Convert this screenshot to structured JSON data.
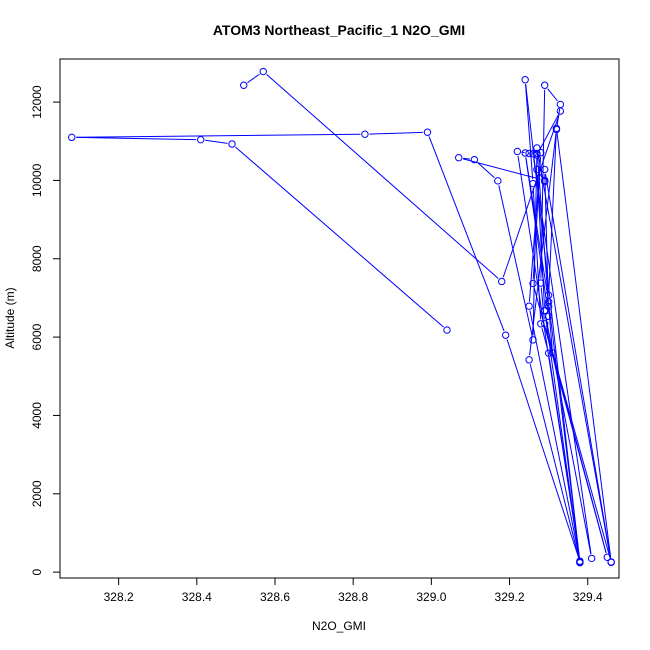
{
  "chart_data": {
    "type": "line",
    "title": "ATOM3 Northeast_Pacific_1 N2O_GMI",
    "xlabel": "N2O_GMI",
    "ylabel": "Altitude (m)",
    "xlim": [
      328.05,
      329.48
    ],
    "ylim": [
      -150,
      13100
    ],
    "x_ticks": [
      328.2,
      328.4,
      328.6,
      328.8,
      329.0,
      329.2,
      329.4
    ],
    "x_tick_labels": [
      "328.2",
      "328.4",
      "328.6",
      "328.8",
      "329.0",
      "329.2",
      "329.4"
    ],
    "y_ticks": [
      0,
      2000,
      4000,
      6000,
      8000,
      10000,
      12000
    ],
    "y_tick_labels": [
      "0",
      "2000",
      "4000",
      "6000",
      "8000",
      "10000",
      "12000"
    ],
    "color": "#0000ff",
    "marker": "open-circle",
    "series": [
      {
        "x": [
          329.04,
          328.49,
          328.41,
          328.08,
          328.83,
          328.99,
          329.19,
          329.38,
          329.3,
          329.28,
          329.26,
          329.24,
          329.38,
          329.29,
          329.3,
          329.32,
          329.46,
          329.29,
          329.28,
          329.29,
          329.33,
          329.32,
          329.25,
          329.38,
          329.3,
          329.24,
          329.3,
          329.29,
          329.46,
          329.27,
          329.3,
          329.31,
          329.45,
          329.26,
          329.28,
          329.25,
          329.38,
          329.22,
          329.25,
          329.26,
          329.41,
          329.29,
          329.27,
          329.29,
          329.29,
          329.07,
          329.11,
          329.17,
          329.26,
          329.27,
          329.27,
          329.33,
          329.18,
          328.57,
          328.52
        ],
        "y": [
          6180,
          10930,
          11040,
          11100,
          11180,
          11230,
          6050,
          270,
          5590,
          6340,
          9920,
          12570,
          240,
          6680,
          7070,
          11330,
          260,
          6340,
          7380,
          12430,
          11940,
          11300,
          5420,
          250,
          6900,
          10700,
          6530,
          10280,
          250,
          10830,
          6780,
          5600,
          380,
          7370,
          10710,
          6790,
          280,
          10740,
          10690,
          10680,
          350,
          6670,
          10280,
          9970,
          10000,
          10580,
          10530,
          9990,
          5930,
          10690,
          10650,
          11770,
          7420,
          12780,
          12430
        ]
      }
    ]
  }
}
